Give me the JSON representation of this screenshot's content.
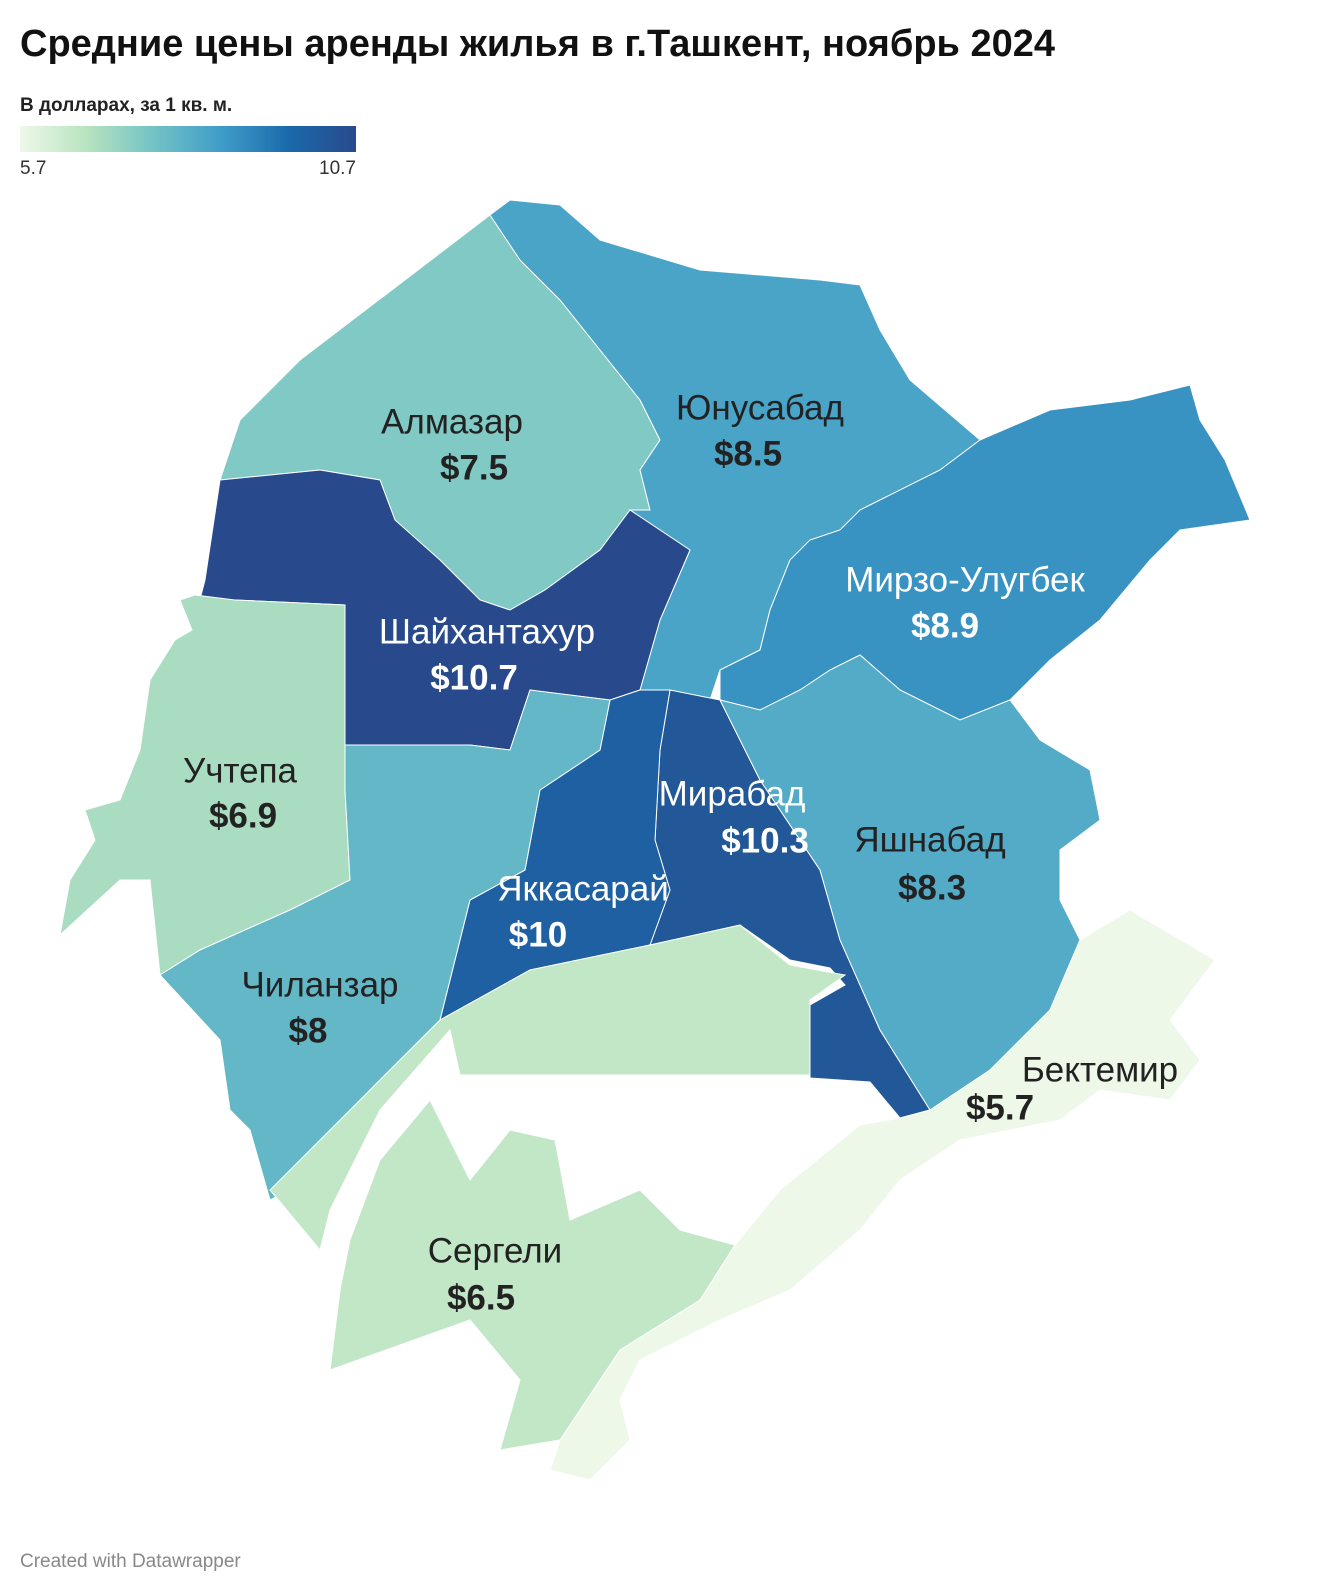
{
  "chart_data": {
    "type": "choropleth",
    "title": "Средние цены аренды жилья в г.Ташкент, ноябрь 2024",
    "subtitle": "В долларах, за 1 кв. м.",
    "legend": {
      "min": 5.7,
      "max": 10.7
    },
    "colors": [
      "#eef8e9",
      "#b7e3bf",
      "#72c2c6",
      "#3f9cc8",
      "#1a6aab",
      "#284a8c"
    ],
    "categories": [
      "Алмазар",
      "Юнусабад",
      "Мирзо-Улугбек",
      "Шайхантахур",
      "Учтепа",
      "Мирабад",
      "Яшнабад",
      "Яккасарай",
      "Чиланзар",
      "Бектемир",
      "Сергели"
    ],
    "values": [
      7.5,
      8.5,
      8.9,
      10.7,
      6.9,
      10.3,
      8.3,
      10,
      8,
      5.7,
      6.5
    ],
    "value_labels": [
      "$7.5",
      "$8.5",
      "$8.9",
      "$10.7",
      "$6.9",
      "$10.3",
      "$8.3",
      "$10",
      "$8",
      "$5.7",
      "$6.5"
    ],
    "credit": "Created with Datawrapper"
  }
}
